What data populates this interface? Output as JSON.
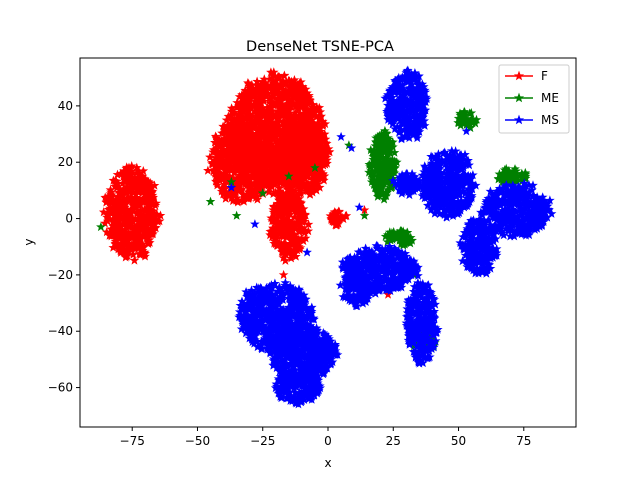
{
  "chart_data": {
    "type": "scatter",
    "title": "DenseNet TSNE-PCA",
    "xlabel": "x",
    "ylabel": "y",
    "xlim": [
      -95,
      95
    ],
    "ylim": [
      -74,
      57
    ],
    "xticks": [
      -75,
      -50,
      -25,
      0,
      25,
      50,
      75
    ],
    "yticks": [
      -60,
      -40,
      -20,
      0,
      20,
      40
    ],
    "grid": false,
    "legend_position": "top-right",
    "marker": "star",
    "series": [
      {
        "name": "F",
        "color": "#ff0000",
        "clusters": [
          {
            "cx": -75,
            "cy": 2,
            "rx": 10,
            "ry": 16
          },
          {
            "cx": -20,
            "cy": 30,
            "rx": 18,
            "ry": 20
          },
          {
            "cx": -33,
            "cy": 20,
            "rx": 12,
            "ry": 14
          },
          {
            "cx": -10,
            "cy": 22,
            "rx": 10,
            "ry": 14
          },
          {
            "cx": -15,
            "cy": -2,
            "rx": 7,
            "ry": 12
          },
          {
            "cx": 4,
            "cy": 0,
            "rx": 3,
            "ry": 3
          }
        ],
        "outliers": [
          [
            23,
            -27
          ],
          [
            31,
            -36
          ],
          [
            -46,
            17
          ],
          [
            14,
            3
          ],
          [
            -17,
            -20
          ]
        ]
      },
      {
        "name": "ME",
        "color": "#008000",
        "clusters": [
          {
            "cx": 21,
            "cy": 19,
            "rx": 5,
            "ry": 12
          },
          {
            "cx": 53,
            "cy": 35,
            "rx": 4,
            "ry": 3
          },
          {
            "cx": 70,
            "cy": 15,
            "rx": 6,
            "ry": 3
          },
          {
            "cx": 27,
            "cy": -7,
            "rx": 5,
            "ry": 3
          },
          {
            "cx": 37,
            "cy": -42,
            "rx": 5,
            "ry": 5
          }
        ],
        "outliers": [
          [
            -87,
            -3
          ],
          [
            -45,
            6
          ],
          [
            -35,
            1
          ],
          [
            -37,
            13
          ],
          [
            -15,
            15
          ],
          [
            -5,
            18
          ],
          [
            8,
            26
          ],
          [
            14,
            1
          ],
          [
            16,
            -20
          ],
          [
            33,
            -20
          ],
          [
            -25,
            9
          ]
        ]
      },
      {
        "name": "MS",
        "color": "#0000ff",
        "clusters": [
          {
            "cx": 30,
            "cy": 40,
            "rx": 8,
            "ry": 12
          },
          {
            "cx": 46,
            "cy": 12,
            "rx": 10,
            "ry": 12
          },
          {
            "cx": 58,
            "cy": -10,
            "rx": 7,
            "ry": 10
          },
          {
            "cx": 72,
            "cy": 3,
            "rx": 13,
            "ry": 9
          },
          {
            "cx": 30,
            "cy": 12,
            "rx": 5,
            "ry": 4
          },
          {
            "cx": 20,
            "cy": -18,
            "rx": 14,
            "ry": 8
          },
          {
            "cx": 11,
            "cy": -25,
            "rx": 6,
            "ry": 6
          },
          {
            "cx": 36,
            "cy": -37,
            "rx": 6,
            "ry": 14
          },
          {
            "cx": -20,
            "cy": -35,
            "rx": 14,
            "ry": 12
          },
          {
            "cx": -10,
            "cy": -48,
            "rx": 12,
            "ry": 10
          },
          {
            "cx": -12,
            "cy": -60,
            "rx": 9,
            "ry": 6
          },
          {
            "cx": -2,
            "cy": -48,
            "rx": 6,
            "ry": 5
          }
        ],
        "outliers": [
          [
            -37,
            11
          ],
          [
            5,
            29
          ],
          [
            9,
            25
          ],
          [
            -28,
            -2
          ],
          [
            12,
            4
          ],
          [
            53,
            31
          ],
          [
            -8,
            -12
          ]
        ]
      }
    ]
  }
}
